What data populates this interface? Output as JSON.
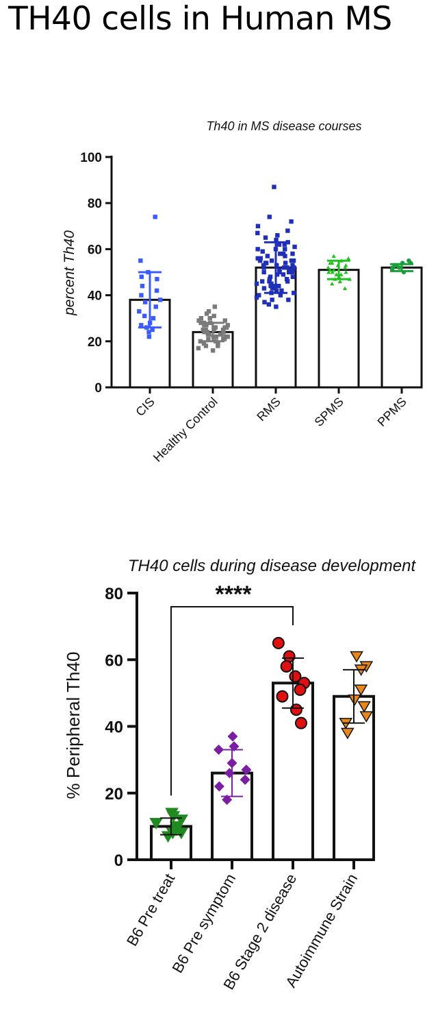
{
  "page": {
    "title": "TH40 cells in Human MS"
  },
  "chart_data": [
    {
      "type": "bar",
      "title": "Th40  in  MS disease courses",
      "xlabel": "",
      "ylabel": "percent Th40",
      "ylim": [
        0,
        100
      ],
      "yticks": [
        0,
        20,
        40,
        60,
        80,
        100
      ],
      "categories": [
        "CIS",
        "Healthy Control",
        "RMS",
        "SPMS",
        "PPMS"
      ],
      "values": [
        38,
        24,
        52,
        51,
        52
      ],
      "sd": [
        12,
        4,
        11,
        4,
        1.5
      ],
      "point_colors": [
        "#3b5bff",
        "#7a7a7a",
        "#1f2fb8",
        "#1fc11f",
        "#1a9e3c"
      ],
      "points": [
        [
          74,
          55,
          50,
          47,
          44,
          42,
          40,
          38,
          37,
          35,
          33,
          31,
          30,
          28,
          27,
          26,
          25,
          24,
          22,
          48
        ],
        [
          35,
          33,
          32,
          31,
          30,
          29,
          29,
          28,
          28,
          27,
          27,
          26,
          26,
          26,
          25,
          25,
          25,
          24,
          24,
          24,
          23,
          23,
          23,
          22,
          22,
          22,
          21,
          21,
          20,
          20,
          19,
          19,
          18,
          18,
          17,
          16,
          28,
          26,
          24,
          22,
          30,
          21,
          25,
          23,
          27
        ],
        [
          87,
          74,
          72,
          70,
          68,
          67,
          66,
          65,
          64,
          63,
          62,
          61,
          60,
          60,
          59,
          58,
          58,
          57,
          57,
          56,
          56,
          55,
          55,
          55,
          54,
          54,
          54,
          53,
          53,
          53,
          52,
          52,
          52,
          51,
          51,
          51,
          50,
          50,
          50,
          49,
          49,
          48,
          48,
          47,
          47,
          46,
          46,
          45,
          45,
          44,
          44,
          43,
          43,
          42,
          42,
          41,
          41,
          40,
          40,
          39,
          38,
          38,
          37,
          36,
          35,
          55,
          52,
          50,
          58,
          48,
          46,
          60,
          62,
          44
        ],
        [
          57,
          56,
          55,
          54,
          54,
          53,
          52,
          52,
          51,
          51,
          50,
          50,
          49,
          49,
          48,
          47,
          47,
          46,
          45,
          43,
          53,
          50
        ],
        [
          55,
          54,
          54,
          53,
          53,
          52,
          52,
          51,
          50
        ]
      ]
    },
    {
      "type": "bar",
      "title": "TH40 cells during disease development",
      "xlabel": "",
      "ylabel": "% Peripheral Th40",
      "ylim": [
        0,
        80
      ],
      "yticks": [
        0,
        20,
        40,
        60,
        80
      ],
      "categories": [
        "B6 Pre treat",
        "B6 Pre symptom",
        "B6 Stage 2 disease",
        "Autoimmune Strain"
      ],
      "values": [
        10,
        26,
        53,
        49
      ],
      "sd": [
        2.5,
        7,
        7.5,
        8
      ],
      "point_colors": [
        "#1f8a1f",
        "#7b1fa2",
        "#e01010",
        "#e8861a"
      ],
      "markers": [
        "triangle-down",
        "diamond",
        "circle",
        "triangle-down"
      ],
      "points": [
        [
          14,
          13,
          12,
          11,
          10,
          9,
          8,
          8,
          7
        ],
        [
          37,
          34,
          33,
          29,
          27,
          26,
          24,
          22,
          18
        ],
        [
          65,
          61,
          58,
          55,
          53,
          51,
          49,
          45,
          41
        ],
        [
          61,
          58,
          57,
          51,
          48,
          46,
          43,
          41,
          38
        ]
      ],
      "annotation": {
        "text": "****",
        "from": "B6 Pre treat",
        "to": "B6 Stage 2 disease"
      }
    }
  ]
}
